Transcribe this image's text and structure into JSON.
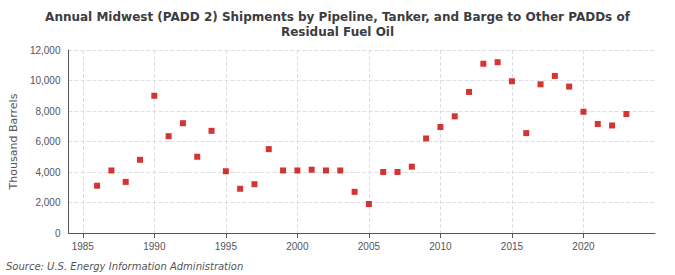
{
  "chart_data": {
    "type": "scatter",
    "title": "Annual Midwest (PADD 2) Shipments by Pipeline, Tanker, and Barge to Other PADDs of\nResidual Fuel Oil",
    "ylabel": "Thousand Barrels",
    "source": "Source: U.S. Energy Information Administration",
    "x": [
      1986,
      1987,
      1988,
      1989,
      1990,
      1991,
      1992,
      1993,
      1994,
      1995,
      1996,
      1997,
      1998,
      1999,
      2000,
      2001,
      2002,
      2003,
      2004,
      2005,
      2006,
      2007,
      2008,
      2009,
      2010,
      2011,
      2012,
      2013,
      2014,
      2015,
      2016,
      2017,
      2018,
      2019,
      2020,
      2021,
      2022,
      2023
    ],
    "values": [
      3100,
      4100,
      3350,
      4800,
      9000,
      6350,
      7200,
      5000,
      6700,
      4050,
      2900,
      3200,
      5500,
      4100,
      4100,
      4150,
      4100,
      4100,
      2700,
      1900,
      4000,
      4000,
      4350,
      6200,
      6950,
      7650,
      9250,
      11100,
      11200,
      9950,
      6550,
      9750,
      10300,
      9600,
      7950,
      7150,
      7050,
      7800
    ],
    "color": "#cc0000",
    "marker": "square",
    "xlim": [
      1984,
      2025
    ],
    "xticks": [
      1985,
      1990,
      1995,
      2000,
      2005,
      2010,
      2015,
      2020
    ],
    "ylim": [
      0,
      12000
    ],
    "yticks": [
      0,
      {
        "value": 2000,
        "label": "2,000"
      },
      {
        "value": 4000,
        "label": "4,000"
      },
      {
        "value": 6000,
        "label": "6,000"
      },
      {
        "value": 8000,
        "label": "8,000"
      },
      {
        "value": 10000,
        "label": "10,000"
      },
      {
        "value": 12000,
        "label": "12,000"
      }
    ],
    "grid": true
  }
}
